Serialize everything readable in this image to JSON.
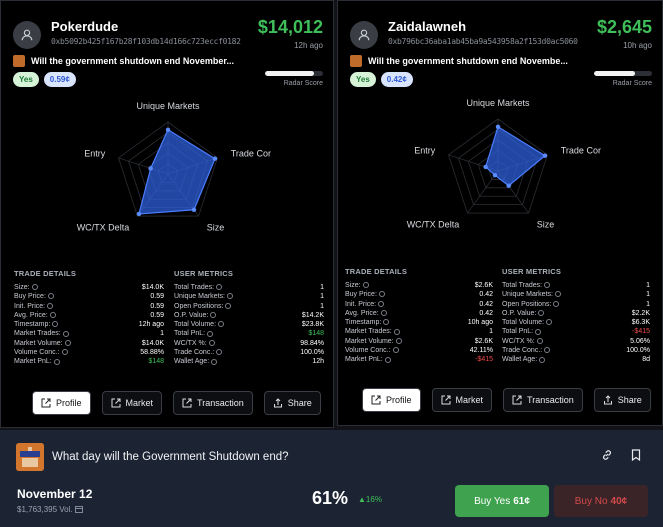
{
  "left": {
    "name": "Pokerdude",
    "address": "0xb5092b425f167b28f103db14d166c723eccf0182",
    "amount": "$14,012",
    "ago": "12h ago",
    "market_title": "Will the government shutdown end November...",
    "side": "Yes",
    "price": "0.59¢",
    "radar_score_label": "Radar Score",
    "radar_score": 0.85,
    "axes": [
      "Unique Markets",
      "Trade Cor",
      "Size",
      "WC/TX Delta",
      "Entry"
    ],
    "axis_values": [
      0.85,
      0.95,
      0.85,
      0.95,
      0.35
    ],
    "trade_details_title": "TRADE DETAILS",
    "trade_details": [
      {
        "label": "Size:",
        "value": "$14.0K"
      },
      {
        "label": "Buy Price:",
        "value": "0.59"
      },
      {
        "label": "Init. Price:",
        "value": "0.59"
      },
      {
        "label": "Avg. Price:",
        "value": "0.59"
      },
      {
        "label": "Timestamp:",
        "value": "12h ago"
      },
      {
        "label": "Market Trades:",
        "value": "1"
      },
      {
        "label": "Market Volume:",
        "value": "$14.0K"
      },
      {
        "label": "Volume Conc.:",
        "value": "58.88%"
      },
      {
        "label": "Market PnL:",
        "value": "$148",
        "tone": "green"
      }
    ],
    "user_metrics_title": "USER METRICS",
    "user_metrics": [
      {
        "label": "Total Trades:",
        "value": "1"
      },
      {
        "label": "Unique Markets:",
        "value": "1"
      },
      {
        "label": "Open Positions:",
        "value": "1"
      },
      {
        "label": "O.P. Value:",
        "value": "$14.2K"
      },
      {
        "label": "Total Volume:",
        "value": "$23.8K"
      },
      {
        "label": "Total PnL:",
        "value": "$148",
        "tone": "green"
      },
      {
        "label": "WC/TX %:",
        "value": "98.84%"
      },
      {
        "label": "Trade Conc.:",
        "value": "100.0%"
      },
      {
        "label": "Wallet Age:",
        "value": "12h"
      }
    ],
    "actions": [
      "Profile",
      "Market",
      "Transaction",
      "Share"
    ]
  },
  "right": {
    "name": "Zaidalawneh",
    "address": "0xb796bc36aba1ab45ba9a543958a2f153d0ac5060",
    "amount": "$2,645",
    "ago": "10h ago",
    "market_title": "Will the government shutdown end Novembe...",
    "side": "Yes",
    "price": "0.42¢",
    "radar_score_label": "Radar Score",
    "radar_score": 0.7,
    "axes": [
      "Unique Markets",
      "Trade Cor",
      "Size",
      "WC/TX Delta",
      "Entry"
    ],
    "axis_values": [
      0.85,
      0.95,
      0.35,
      0.1,
      0.25
    ],
    "trade_details_title": "TRADE DETAILS",
    "trade_details": [
      {
        "label": "Size:",
        "value": "$2.6K"
      },
      {
        "label": "Buy Price:",
        "value": "0.42"
      },
      {
        "label": "Init. Price:",
        "value": "0.42"
      },
      {
        "label": "Avg. Price:",
        "value": "0.42"
      },
      {
        "label": "Timestamp:",
        "value": "10h ago"
      },
      {
        "label": "Market Trades:",
        "value": "1"
      },
      {
        "label": "Market Volume:",
        "value": "$2.6K"
      },
      {
        "label": "Volume Conc.:",
        "value": "42.11%"
      },
      {
        "label": "Market PnL:",
        "value": "-$415",
        "tone": "red"
      }
    ],
    "user_metrics_title": "USER METRICS",
    "user_metrics": [
      {
        "label": "Total Trades:",
        "value": "1"
      },
      {
        "label": "Unique Markets:",
        "value": "1"
      },
      {
        "label": "Open Positions:",
        "value": "1"
      },
      {
        "label": "O.P. Value:",
        "value": "$2.2K"
      },
      {
        "label": "Total Volume:",
        "value": "$6.3K"
      },
      {
        "label": "Total PnL:",
        "value": "-$415",
        "tone": "red"
      },
      {
        "label": "WC/TX %:",
        "value": "5.06%"
      },
      {
        "label": "Trade Conc.:",
        "value": "100.0%"
      },
      {
        "label": "Wallet Age:",
        "value": "8d"
      }
    ],
    "actions": [
      "Profile",
      "Market",
      "Transaction",
      "Share"
    ]
  },
  "bottom": {
    "question": "What day will the Government Shutdown end?",
    "outcome": "November 12",
    "volume": "$1,763,395 Vol.",
    "percent": "61%",
    "change": "▲16%",
    "buy_yes_label": "Buy Yes",
    "buy_yes_price": "61¢",
    "buy_no_label": "Buy No",
    "buy_no_price": "40¢"
  },
  "colors": {
    "accent_green": "#3fbf5a",
    "accent_red": "#ef4a4a",
    "radar_fill": "#2e5fd9",
    "radar_stroke": "#4a7dff"
  }
}
